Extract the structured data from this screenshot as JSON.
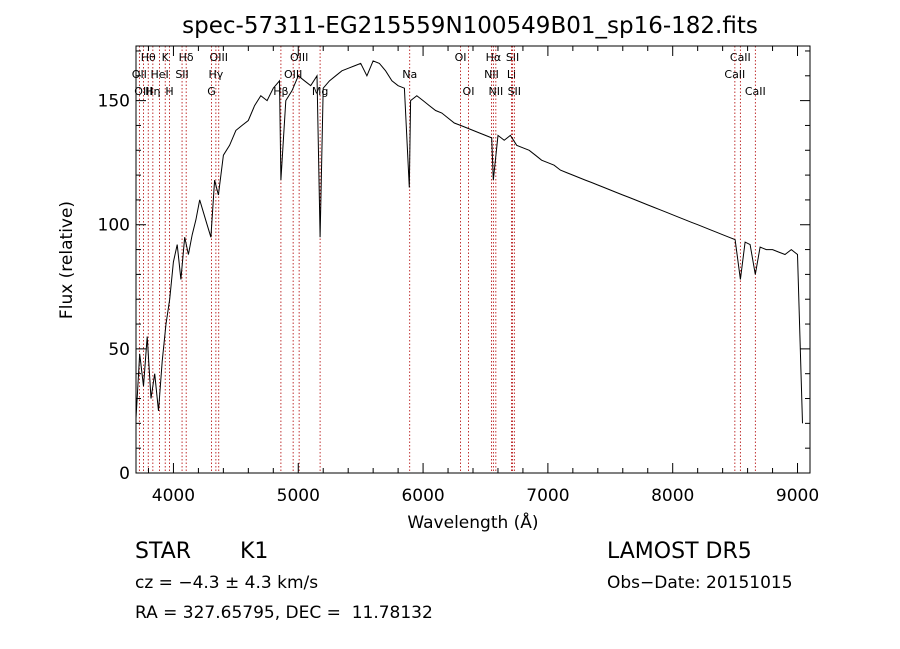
{
  "chart_data": {
    "type": "line",
    "title": "spec-57311-EG215559N100549B01_sp16-182.fits",
    "xlabel": "Wavelength (Å)",
    "ylabel": "Flux (relative)",
    "xlim": [
      3700,
      9100
    ],
    "ylim": [
      0,
      172
    ],
    "x_ticks": [
      4000,
      5000,
      6000,
      7000,
      8000,
      9000
    ],
    "y_ticks": [
      0,
      50,
      100,
      150
    ],
    "grid": false,
    "series": [
      {
        "x": [
          3700,
          3730,
          3760,
          3790,
          3820,
          3850,
          3880,
          3910,
          3940,
          3970,
          4000,
          4030,
          4060,
          4090,
          4120,
          4150,
          4180,
          4210,
          4240,
          4270,
          4300,
          4330,
          4360,
          4400,
          4450,
          4500,
          4550,
          4600,
          4650,
          4700,
          4750,
          4800,
          4850,
          4861,
          4900,
          4950,
          5000,
          5050,
          5100,
          5150,
          5175,
          5200,
          5250,
          5300,
          5350,
          5400,
          5450,
          5500,
          5550,
          5600,
          5650,
          5700,
          5750,
          5800,
          5850,
          5890,
          5900,
          5950,
          6000,
          6050,
          6100,
          6150,
          6200,
          6250,
          6300,
          6350,
          6400,
          6450,
          6500,
          6550,
          6563,
          6600,
          6650,
          6700,
          6750,
          6800,
          6850,
          6900,
          6950,
          7000,
          7050,
          7100,
          7150,
          7200,
          7250,
          7300,
          7350,
          7400,
          7450,
          7500,
          7550,
          7600,
          7650,
          7700,
          7750,
          7800,
          7850,
          7900,
          7950,
          8000,
          8050,
          8100,
          8150,
          8200,
          8250,
          8300,
          8350,
          8400,
          8450,
          8500,
          8542,
          8580,
          8620,
          8662,
          8700,
          8750,
          8800,
          8850,
          8900,
          8950,
          9000,
          9040
        ],
        "y": [
          22,
          48,
          35,
          55,
          30,
          40,
          25,
          45,
          60,
          70,
          85,
          92,
          78,
          95,
          88,
          96,
          102,
          110,
          105,
          100,
          95,
          118,
          112,
          128,
          132,
          138,
          140,
          142,
          148,
          152,
          150,
          155,
          158,
          118,
          150,
          154,
          160,
          158,
          156,
          160,
          95,
          155,
          158,
          160,
          162,
          163,
          164,
          165,
          160,
          166,
          165,
          162,
          158,
          156,
          155,
          115,
          150,
          152,
          150,
          148,
          146,
          145,
          143,
          141,
          140,
          139,
          138,
          137,
          136,
          135,
          118,
          136,
          134,
          136,
          132,
          131,
          130,
          128,
          126,
          125,
          124,
          122,
          121,
          120,
          119,
          118,
          117,
          116,
          115,
          114,
          113,
          112,
          111,
          110,
          109,
          108,
          107,
          106,
          105,
          104,
          103,
          102,
          101,
          100,
          99,
          98,
          97,
          96,
          95,
          94,
          78,
          93,
          92,
          80,
          91,
          90,
          90,
          89,
          88,
          90,
          88,
          20
        ]
      }
    ],
    "lines": [
      {
        "label": "Hθ",
        "x": 3798,
        "row": 1
      },
      {
        "label": "OII",
        "x": 3727,
        "row": 2
      },
      {
        "label": "OIII",
        "x": 3760,
        "row": 3
      },
      {
        "label": "K",
        "x": 3934,
        "row": 1
      },
      {
        "label": "HeI",
        "x": 3889,
        "row": 2
      },
      {
        "label": "Hη",
        "x": 3835,
        "row": 3
      },
      {
        "label": "H",
        "x": 3969,
        "row": 3
      },
      {
        "label": "Hδ",
        "x": 4102,
        "row": 1
      },
      {
        "label": "SII",
        "x": 4069,
        "row": 2
      },
      {
        "label": "OIII",
        "x": 4363,
        "row": 1
      },
      {
        "label": "Hγ",
        "x": 4340,
        "row": 2
      },
      {
        "label": "G",
        "x": 4305,
        "row": 3
      },
      {
        "label": "OIII",
        "x": 5007,
        "row": 1
      },
      {
        "label": "OIII",
        "x": 4959,
        "row": 2
      },
      {
        "label": "Hβ",
        "x": 4861,
        "row": 3
      },
      {
        "label": "Mg",
        "x": 5175,
        "row": 3
      },
      {
        "label": "Na",
        "x": 5893,
        "row": 2
      },
      {
        "label": "OI",
        "x": 6300,
        "row": 1
      },
      {
        "label": "OI",
        "x": 6364,
        "row": 3
      },
      {
        "label": "Hα",
        "x": 6563,
        "row": 1
      },
      {
        "label": "NII",
        "x": 6548,
        "row": 2
      },
      {
        "label": "NII",
        "x": 6583,
        "row": 3
      },
      {
        "label": "SII",
        "x": 6717,
        "row": 1
      },
      {
        "label": "Li",
        "x": 6708,
        "row": 2
      },
      {
        "label": "SII",
        "x": 6731,
        "row": 3
      },
      {
        "label": "CaII",
        "x": 8542,
        "row": 1
      },
      {
        "label": "CaII",
        "x": 8498,
        "row": 2
      },
      {
        "label": "CaII",
        "x": 8662,
        "row": 3
      }
    ]
  },
  "info": {
    "object_class": "STAR",
    "subclass": "K1",
    "survey": "LAMOST DR5",
    "cz": "cz = −4.3 ± 4.3 km/s",
    "obs_date": "Obs−Date: 20151015",
    "coords": "RA = 327.65795, DEC =  11.78132"
  }
}
